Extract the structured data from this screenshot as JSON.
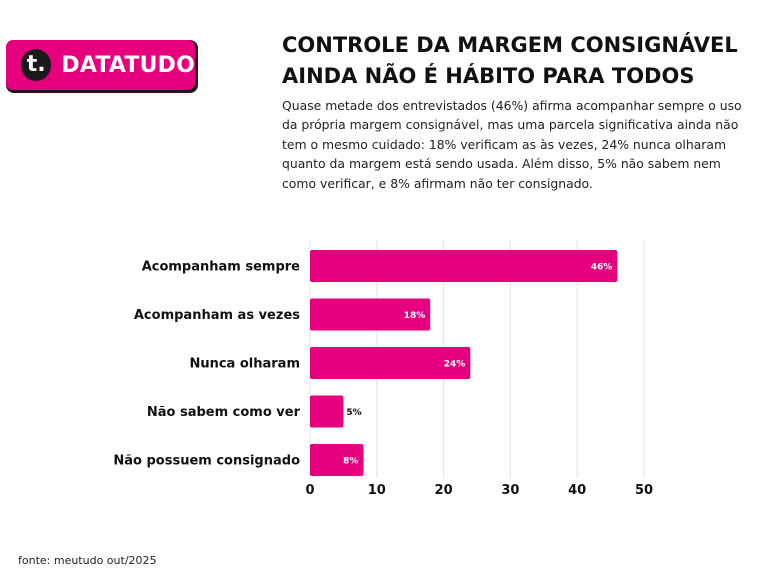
{
  "header": {
    "logo_icon": "t.",
    "logo_text": "DATATUDO",
    "title_lines": [
      "CONTROLE DA MARGEM CONSIGNÁVEL",
      "AINDA NÃO É HÁBITO PARA TODOS"
    ],
    "subtitle_lines": [
      "Quase metade dos entrevistados (46%) afirma acompanhar sempre o uso",
      "da própria margem consignável, mas uma parcela significativa ainda não",
      "tem o mesmo cuidado: 18% verificam as às vezes, 24% nunca olharam",
      "quanto da margem está sendo usada. Além disso, 5% não sabem nem",
      "como verificar, e 8% afirmam não ter consignado."
    ]
  },
  "colors": {
    "accent": "#e6007e",
    "logo_shadow": "#1a1a1a",
    "grid": "#e3e3e3",
    "text": "#111111"
  },
  "chart_data": {
    "type": "bar",
    "orientation": "horizontal",
    "categories": [
      "Acompanham sempre",
      "Acompanham as vezes",
      "Nunca olharam",
      "Não sabem como ver",
      "Não possuem consignado"
    ],
    "values": [
      46,
      18,
      24,
      5,
      8
    ],
    "data_labels": [
      "46%",
      "18%",
      "24%",
      "5%",
      "8%"
    ],
    "x_ticks": [
      "0",
      "10",
      "20",
      "30",
      "40",
      "50"
    ],
    "xlim": [
      0,
      50
    ],
    "grid": true,
    "title": "",
    "xlabel": "",
    "ylabel": ""
  },
  "footer": {
    "source": "fonte: meutudo out/2025"
  }
}
